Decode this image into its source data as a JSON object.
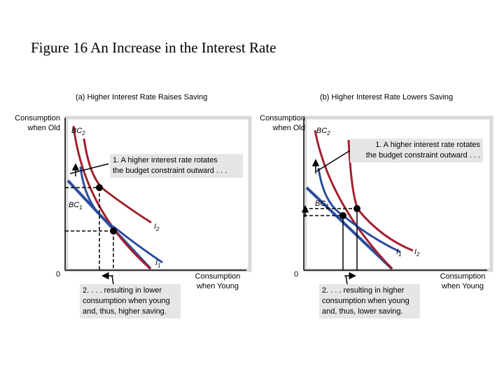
{
  "figure": {
    "title": "Figure 16 An Increase in the Interest Rate"
  },
  "panel_a": {
    "title": "(a) Higher Interest Rate Raises Saving",
    "y_axis_label_line1": "Consumption",
    "y_axis_label_line2": "when Old",
    "x_axis_label_line1": "Consumption",
    "x_axis_label_line2": "when Young",
    "origin": "0",
    "note1_line1": "1. A higher interest rate rotates",
    "note1_line2": "the budget constraint outward . . .",
    "note2_line1": "2. . . . resulting in lower",
    "note2_line2": "consumption when young",
    "note2_line3": "and, thus, higher saving.",
    "bc2_sym": "BC",
    "bc2_sub": "2",
    "bc1_sym": "BC",
    "bc1_sub": "1",
    "i2_sym": "I",
    "i2_sub": "2",
    "i1_sym": "I",
    "i1_sub": "1"
  },
  "panel_b": {
    "title": "(b) Higher Interest Rate Lowers Saving",
    "y_axis_label_line1": "Consumption",
    "y_axis_label_line2": "when Old",
    "x_axis_label_line1": "Consumption",
    "x_axis_label_line2": "when Young",
    "origin": "0",
    "note1_line1": "1. A higher interest rate rotates",
    "note1_line2": "the budget constraint outward . . .",
    "note2_line1": "2. . . . resulting in higher",
    "note2_line2": "consumption when young",
    "note2_line3": "and, thus, lower saving.",
    "bc2_sym": "BC",
    "bc2_sub": "2",
    "bc1_sym": "BC",
    "bc1_sub": "1",
    "i1_sym": "I",
    "i1_sub": "1",
    "i2_sym": "I",
    "i2_sub": "2"
  },
  "colors": {
    "budget_constraint_old": "#2a4d9c",
    "budget_constraint_new": "#a3202e",
    "indifference_low": "#2a4d9c",
    "indifference_high": "#a3202e",
    "point": "#000000",
    "note_background": "#e6e6e6"
  }
}
